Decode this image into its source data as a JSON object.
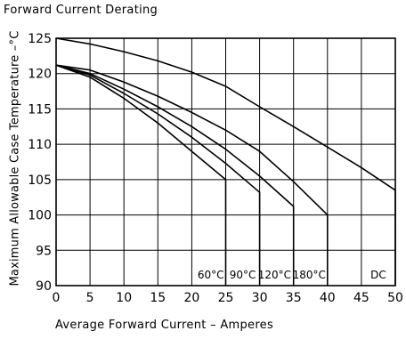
{
  "chart_data": {
    "type": "line",
    "title": "Forward Current Derating",
    "xlabel": "Average Forward Current – Amperes",
    "ylabel": "Maximum Allowable Case Temperature –°C",
    "xlim": [
      0,
      50
    ],
    "ylim": [
      90,
      125
    ],
    "x_ticks": [
      0,
      5,
      10,
      15,
      20,
      25,
      30,
      35,
      40,
      45,
      50
    ],
    "y_ticks": [
      90,
      95,
      100,
      105,
      110,
      115,
      120,
      125
    ],
    "grid": true,
    "series": [
      {
        "name": "60°C",
        "x": [
          0,
          5,
          10,
          15,
          20,
          25,
          25
        ],
        "y": [
          121.2,
          119.5,
          116.5,
          113,
          109,
          105,
          90
        ]
      },
      {
        "name": "90°C",
        "x": [
          0,
          5,
          10,
          15,
          20,
          25,
          30,
          30
        ],
        "y": [
          121.2,
          119.8,
          117.2,
          114.3,
          111,
          107.3,
          103.2,
          90
        ]
      },
      {
        "name": "120°C",
        "x": [
          0,
          5,
          10,
          15,
          20,
          25,
          30,
          35,
          35
        ],
        "y": [
          121.2,
          120,
          117.8,
          115.3,
          112.5,
          109.3,
          105.5,
          101.2,
          90
        ]
      },
      {
        "name": "180°C",
        "x": [
          0,
          5,
          10,
          15,
          20,
          25,
          30,
          35,
          40,
          40
        ],
        "y": [
          121.2,
          120.5,
          118.8,
          116.8,
          114.5,
          112,
          109,
          104.7,
          100,
          90
        ]
      },
      {
        "name": "DC",
        "x": [
          0,
          5,
          10,
          15,
          20,
          25,
          30,
          35,
          40,
          45,
          50,
          50
        ],
        "y": [
          125,
          124.2,
          123.1,
          121.8,
          120.2,
          118.2,
          115.3,
          112.5,
          109.6,
          106.7,
          103.5,
          90
        ]
      }
    ],
    "curve_labels": [
      {
        "text": "60°C",
        "x": 22.8,
        "y": 91
      },
      {
        "text": "90°C",
        "x": 27.5,
        "y": 91
      },
      {
        "text": "120°C",
        "x": 32.2,
        "y": 91
      },
      {
        "text": "180°C",
        "x": 37.3,
        "y": 91
      },
      {
        "text": "DC",
        "x": 47.5,
        "y": 91
      }
    ]
  }
}
